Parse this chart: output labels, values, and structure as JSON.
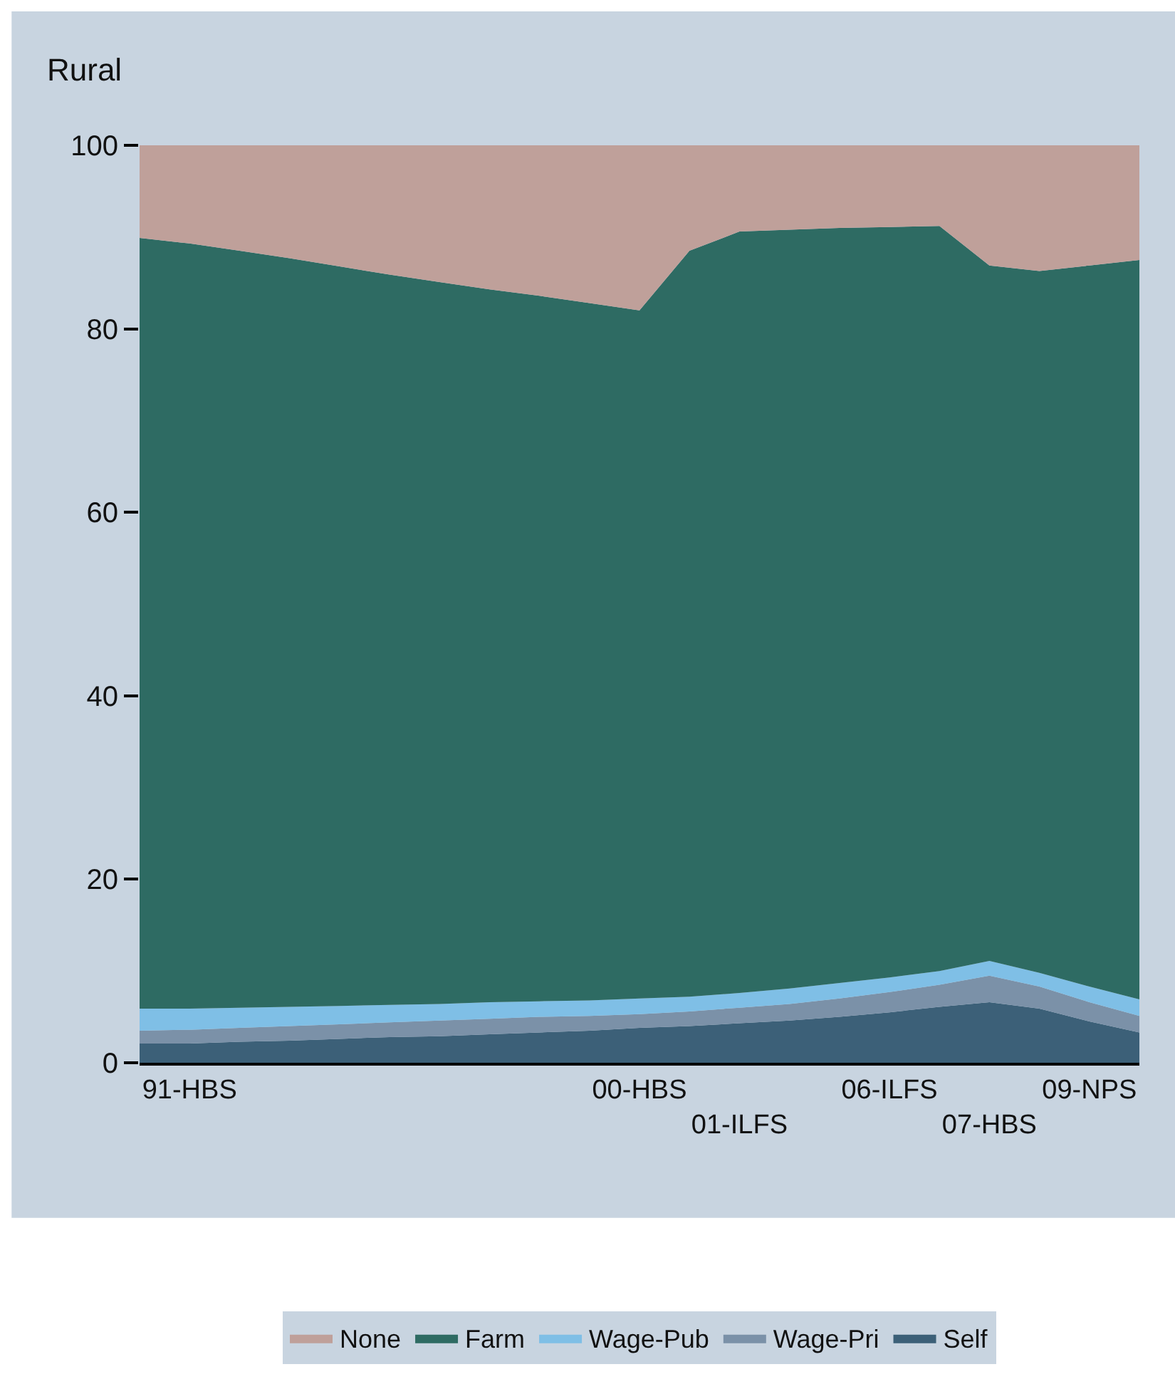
{
  "chart_data": {
    "type": "area",
    "title": "Rural",
    "stacked": true,
    "categories": [
      null,
      "91-HBS",
      null,
      null,
      null,
      null,
      null,
      null,
      null,
      null,
      "00-HBS",
      null,
      "01-ILFS",
      null,
      null,
      "06-ILFS",
      null,
      "07-HBS",
      null,
      "09-NPS",
      null
    ],
    "series": [
      {
        "name": "Self",
        "color": "#3c6078",
        "values": [
          2.1,
          2.1,
          2.3,
          2.4,
          2.6,
          2.8,
          2.9,
          3.1,
          3.3,
          3.5,
          3.8,
          4.0,
          4.3,
          4.6,
          5.0,
          5.5,
          6.1,
          6.6,
          5.9,
          4.5,
          3.3
        ]
      },
      {
        "name": "Wage-Pri",
        "color": "#7b91a8",
        "values": [
          1.4,
          1.5,
          1.5,
          1.6,
          1.6,
          1.6,
          1.7,
          1.7,
          1.7,
          1.6,
          1.5,
          1.6,
          1.7,
          1.8,
          2.0,
          2.2,
          2.4,
          2.9,
          2.4,
          2.1,
          1.8
        ]
      },
      {
        "name": "Wage-Pub",
        "color": "#7fbfe6",
        "values": [
          2.4,
          2.3,
          2.2,
          2.1,
          2.0,
          1.9,
          1.8,
          1.8,
          1.7,
          1.7,
          1.7,
          1.6,
          1.6,
          1.7,
          1.7,
          1.6,
          1.5,
          1.6,
          1.5,
          1.7,
          1.8
        ]
      },
      {
        "name": "Farm",
        "color": "#2e6b63",
        "values": [
          84.0,
          83.4,
          82.5,
          81.6,
          80.6,
          79.6,
          78.7,
          77.7,
          76.9,
          76.0,
          75.0,
          81.3,
          83.0,
          82.7,
          82.3,
          81.8,
          81.2,
          75.8,
          76.5,
          78.6,
          80.6
        ]
      },
      {
        "name": "None",
        "color": "#bfa09a",
        "values": [
          10.1,
          10.7,
          11.5,
          12.3,
          13.2,
          14.1,
          14.9,
          15.7,
          16.4,
          17.2,
          18.0,
          11.5,
          9.4,
          9.2,
          9.0,
          8.9,
          8.8,
          13.1,
          13.7,
          13.1,
          12.5
        ]
      }
    ],
    "ylim": [
      0,
      100
    ],
    "yticks": [
      0,
      20,
      40,
      60,
      80,
      100
    ],
    "grid": false,
    "legend": "bottom"
  }
}
